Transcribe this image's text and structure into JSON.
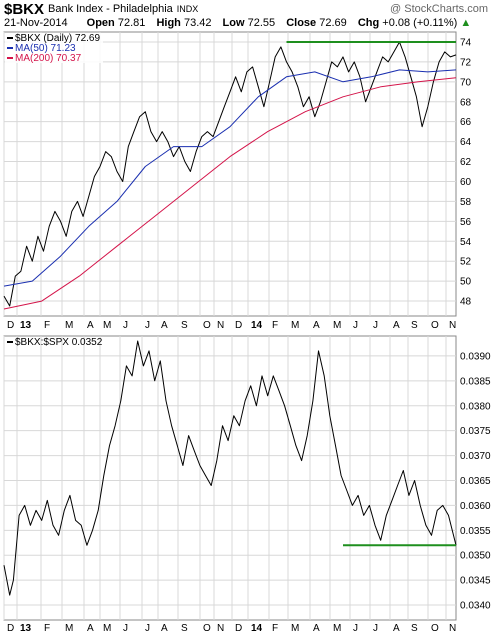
{
  "header": {
    "symbol": "$BKX",
    "description": "Bank Index - Philadelphia",
    "exchange": "INDX",
    "watermark": "@ StockCharts.com",
    "date": "21-Nov-2014",
    "open_label": "Open",
    "open": "72.81",
    "high_label": "High",
    "high": "73.42",
    "low_label": "Low",
    "low": "72.55",
    "close_label": "Close",
    "close": "72.69",
    "chg_label": "Chg",
    "chg": "+0.08 (+0.11%)"
  },
  "colors": {
    "price": "#000000",
    "ma50": "#1a2fb0",
    "ma200": "#d4144a",
    "support": "#1e8f1e",
    "grid": "#d8d8d8",
    "up_arrow": "#1e8f1e"
  },
  "chart_data": [
    {
      "type": "line",
      "title": "$BKX (Daily) 72.69",
      "x": [
        "2012-12",
        "2013-01",
        "2013-02",
        "2013-03",
        "2013-04",
        "2013-05",
        "2013-06",
        "2013-07",
        "2013-08",
        "2013-09",
        "2013-10",
        "2013-11",
        "2013-12",
        "2014-01",
        "2014-02",
        "2014-03",
        "2014-04",
        "2014-05",
        "2014-06",
        "2014-07",
        "2014-08",
        "2014-09",
        "2014-10",
        "2014-11"
      ],
      "x_tick_labels": [
        "D",
        "13",
        "F",
        "M",
        "A",
        "M",
        "J",
        "J",
        "A",
        "S",
        "O",
        "N",
        "D",
        "14",
        "F",
        "M",
        "A",
        "M",
        "J",
        "J",
        "A",
        "S",
        "O",
        "N"
      ],
      "ylim": [
        46.5,
        75
      ],
      "y_ticks": [
        48,
        50,
        52,
        54,
        56,
        58,
        60,
        62,
        64,
        66,
        68,
        70,
        72,
        74
      ],
      "legend": [
        {
          "label": "$BKX (Daily) 72.69"
        },
        {
          "label": "MA(50) 71.23"
        },
        {
          "label": "MA(200) 70.37"
        }
      ],
      "series": [
        {
          "name": "$BKX (Daily)",
          "values": [
            [
              0,
              48.5
            ],
            [
              3,
              47.5
            ],
            [
              6,
              50.5
            ],
            [
              9,
              51.0
            ],
            [
              12,
              53.5
            ],
            [
              15,
              52.0
            ],
            [
              18,
              54.5
            ],
            [
              21,
              53.0
            ],
            [
              24,
              55.5
            ],
            [
              27,
              57.0
            ],
            [
              30,
              56.0
            ],
            [
              33,
              54.5
            ],
            [
              36,
              57.0
            ],
            [
              39,
              58.0
            ],
            [
              42,
              56.5
            ],
            [
              45,
              58.5
            ],
            [
              48,
              60.5
            ],
            [
              51,
              61.5
            ],
            [
              54,
              63.0
            ],
            [
              57,
              62.5
            ],
            [
              60,
              61.0
            ],
            [
              63,
              60.0
            ],
            [
              66,
              63.5
            ],
            [
              69,
              65.0
            ],
            [
              72,
              66.5
            ],
            [
              75,
              67.0
            ],
            [
              78,
              65.0
            ],
            [
              81,
              64.0
            ],
            [
              84,
              65.0
            ],
            [
              87,
              64.0
            ],
            [
              90,
              62.5
            ],
            [
              93,
              63.5
            ],
            [
              96,
              62.0
            ],
            [
              99,
              61.0
            ],
            [
              102,
              63.0
            ],
            [
              105,
              64.5
            ],
            [
              108,
              65.0
            ],
            [
              111,
              64.5
            ],
            [
              114,
              66.0
            ],
            [
              117,
              67.5
            ],
            [
              120,
              69.0
            ],
            [
              123,
              70.5
            ],
            [
              126,
              69.0
            ],
            [
              129,
              71.0
            ],
            [
              132,
              71.5
            ],
            [
              135,
              69.5
            ],
            [
              138,
              67.5
            ],
            [
              141,
              70.0
            ],
            [
              144,
              72.5
            ],
            [
              147,
              73.5
            ],
            [
              150,
              72.0
            ],
            [
              153,
              71.0
            ],
            [
              156,
              69.5
            ],
            [
              159,
              67.5
            ],
            [
              162,
              68.5
            ],
            [
              165,
              66.5
            ],
            [
              168,
              68.0
            ],
            [
              171,
              70.0
            ],
            [
              174,
              72.0
            ],
            [
              177,
              71.5
            ],
            [
              180,
              72.5
            ],
            [
              183,
              71.0
            ],
            [
              186,
              72.0
            ],
            [
              189,
              70.5
            ],
            [
              192,
              68.0
            ],
            [
              195,
              69.5
            ],
            [
              198,
              71.0
            ],
            [
              201,
              72.5
            ],
            [
              204,
              72.0
            ],
            [
              207,
              73.0
            ],
            [
              210,
              74.0
            ],
            [
              213,
              72.5
            ],
            [
              216,
              70.5
            ],
            [
              219,
              68.5
            ],
            [
              222,
              65.5
            ],
            [
              225,
              67.5
            ],
            [
              228,
              70.0
            ],
            [
              231,
              72.0
            ],
            [
              234,
              73.0
            ],
            [
              237,
              72.5
            ],
            [
              240,
              72.7
            ]
          ]
        },
        {
          "name": "MA(50)",
          "values": [
            [
              0,
              49.5
            ],
            [
              15,
              50.0
            ],
            [
              30,
              52.5
            ],
            [
              45,
              55.5
            ],
            [
              60,
              58.0
            ],
            [
              75,
              61.5
            ],
            [
              90,
              63.5
            ],
            [
              105,
              63.5
            ],
            [
              120,
              65.5
            ],
            [
              135,
              68.5
            ],
            [
              150,
              70.5
            ],
            [
              165,
              71.0
            ],
            [
              180,
              70.0
            ],
            [
              195,
              70.5
            ],
            [
              210,
              71.2
            ],
            [
              225,
              71.0
            ],
            [
              240,
              71.2
            ]
          ]
        },
        {
          "name": "MA(200)",
          "values": [
            [
              0,
              47.2
            ],
            [
              20,
              48.0
            ],
            [
              40,
              50.5
            ],
            [
              60,
              53.5
            ],
            [
              80,
              56.5
            ],
            [
              100,
              59.5
            ],
            [
              120,
              62.5
            ],
            [
              140,
              65.0
            ],
            [
              160,
              67.0
            ],
            [
              180,
              68.5
            ],
            [
              200,
              69.5
            ],
            [
              220,
              70.0
            ],
            [
              240,
              70.4
            ]
          ]
        }
      ],
      "annotations": [
        {
          "type": "horizontal_line",
          "y": 74.0,
          "x_from": 150,
          "x_to": 240
        }
      ]
    },
    {
      "type": "line",
      "title": "$BKX:$SPX 0.0352",
      "x_tick_labels": [
        "D",
        "13",
        "F",
        "M",
        "A",
        "M",
        "J",
        "J",
        "A",
        "S",
        "O",
        "N",
        "D",
        "14",
        "F",
        "M",
        "A",
        "M",
        "J",
        "J",
        "A",
        "S",
        "O",
        "N"
      ],
      "ylim": [
        0.0337,
        0.0394
      ],
      "y_ticks": [
        0.034,
        0.0345,
        0.035,
        0.0355,
        0.036,
        0.0365,
        0.037,
        0.0375,
        0.038,
        0.0385,
        0.039
      ],
      "legend": [
        {
          "label": "$BKX:$SPX 0.0352"
        }
      ],
      "series": [
        {
          "name": "$BKX:$SPX",
          "values": [
            [
              0,
              0.0348
            ],
            [
              3,
              0.0342
            ],
            [
              5,
              0.0345
            ],
            [
              8,
              0.0358
            ],
            [
              11,
              0.036
            ],
            [
              14,
              0.0356
            ],
            [
              17,
              0.0359
            ],
            [
              20,
              0.0357
            ],
            [
              23,
              0.0361
            ],
            [
              26,
              0.0356
            ],
            [
              29,
              0.0354
            ],
            [
              32,
              0.0359
            ],
            [
              35,
              0.0362
            ],
            [
              38,
              0.0357
            ],
            [
              41,
              0.0356
            ],
            [
              44,
              0.0352
            ],
            [
              47,
              0.0355
            ],
            [
              50,
              0.0359
            ],
            [
              53,
              0.0366
            ],
            [
              56,
              0.0372
            ],
            [
              59,
              0.0376
            ],
            [
              62,
              0.0381
            ],
            [
              65,
              0.0388
            ],
            [
              68,
              0.0386
            ],
            [
              71,
              0.0393
            ],
            [
              74,
              0.0388
            ],
            [
              77,
              0.0391
            ],
            [
              80,
              0.0385
            ],
            [
              83,
              0.0389
            ],
            [
              86,
              0.0381
            ],
            [
              89,
              0.0376
            ],
            [
              92,
              0.0372
            ],
            [
              95,
              0.0368
            ],
            [
              98,
              0.0374
            ],
            [
              101,
              0.0371
            ],
            [
              104,
              0.0368
            ],
            [
              107,
              0.0366
            ],
            [
              110,
              0.0364
            ],
            [
              113,
              0.0369
            ],
            [
              116,
              0.0376
            ],
            [
              119,
              0.0373
            ],
            [
              122,
              0.0378
            ],
            [
              125,
              0.0376
            ],
            [
              128,
              0.0381
            ],
            [
              131,
              0.0384
            ],
            [
              134,
              0.038
            ],
            [
              137,
              0.0386
            ],
            [
              140,
              0.0382
            ],
            [
              143,
              0.0386
            ],
            [
              146,
              0.0383
            ],
            [
              149,
              0.038
            ],
            [
              152,
              0.0376
            ],
            [
              155,
              0.0372
            ],
            [
              158,
              0.0369
            ],
            [
              161,
              0.0374
            ],
            [
              164,
              0.0381
            ],
            [
              167,
              0.0391
            ],
            [
              170,
              0.0386
            ],
            [
              173,
              0.0378
            ],
            [
              176,
              0.0372
            ],
            [
              179,
              0.0366
            ],
            [
              182,
              0.0363
            ],
            [
              185,
              0.036
            ],
            [
              188,
              0.0362
            ],
            [
              191,
              0.0358
            ],
            [
              194,
              0.036
            ],
            [
              197,
              0.0356
            ],
            [
              200,
              0.0353
            ],
            [
              203,
              0.0358
            ],
            [
              206,
              0.0361
            ],
            [
              209,
              0.0364
            ],
            [
              212,
              0.0367
            ],
            [
              215,
              0.0362
            ],
            [
              218,
              0.0365
            ],
            [
              221,
              0.036
            ],
            [
              224,
              0.0356
            ],
            [
              227,
              0.0354
            ],
            [
              230,
              0.0359
            ],
            [
              233,
              0.036
            ],
            [
              236,
              0.0358
            ],
            [
              240,
              0.0352
            ]
          ]
        }
      ],
      "annotations": [
        {
          "type": "horizontal_line",
          "y": 0.0352,
          "x_from": 180,
          "x_to": 240
        }
      ]
    }
  ]
}
